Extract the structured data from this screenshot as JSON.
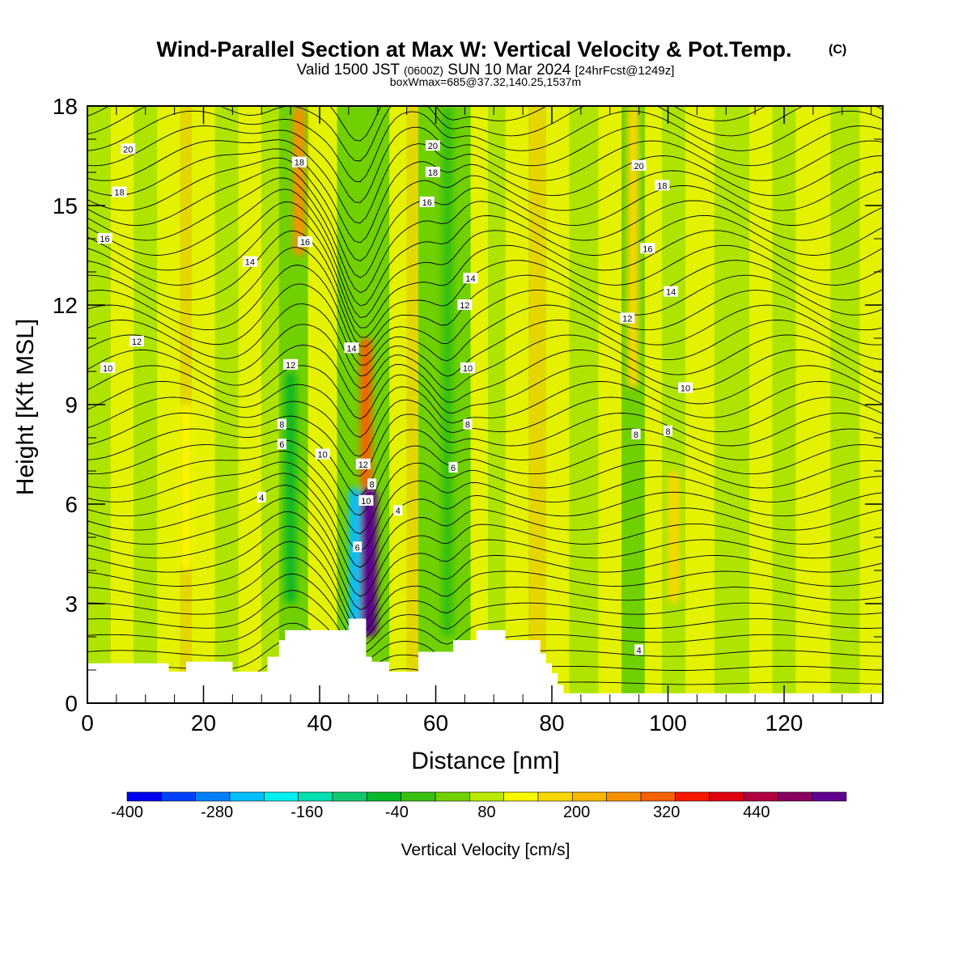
{
  "title": "Wind-Parallel Section at Max W: Vertical Velocity & Pot.Temp.",
  "title_mark": "(C)",
  "subtitle_main": "Valid 1500 JST",
  "subtitle_z": "(0600Z)",
  "subtitle_date": "SUN 10 Mar 2024",
  "subtitle_fcst": "[24hrFcst@1249z]",
  "box_info": "boxWmax=685@37.32,140.25,1537m",
  "chart_data": {
    "type": "heatmap",
    "xlabel": "Distance [nm]",
    "ylabel": "Height [Kft MSL]",
    "xlim": [
      0,
      137
    ],
    "ylim": [
      0,
      18
    ],
    "x_ticks": [
      "0",
      "20",
      "40",
      "60",
      "80",
      "100",
      "120"
    ],
    "y_ticks": [
      "0",
      "3",
      "6",
      "9",
      "12",
      "15",
      "18"
    ],
    "colorbar": {
      "label": "Vertical Velocity [cm/s]",
      "range": [
        -400,
        520
      ],
      "step": 40,
      "tick_labels": [
        "-400",
        "-280",
        "-160",
        "-40",
        "80",
        "200",
        "320",
        "440"
      ],
      "colors": [
        "#0000f0",
        "#0040ff",
        "#0080ff",
        "#00c0ff",
        "#00f0f0",
        "#00e0b0",
        "#10c870",
        "#08b828",
        "#38c010",
        "#70d000",
        "#b8e800",
        "#f8f800",
        "#f8d800",
        "#f8b800",
        "#f89000",
        "#f86000",
        "#f81800",
        "#e00010",
        "#b00040",
        "#880060",
        "#600090"
      ]
    },
    "terrain": [
      [
        0,
        1.2
      ],
      [
        14,
        1.2
      ],
      [
        14,
        0.95
      ],
      [
        17,
        0.95
      ],
      [
        17,
        1.25
      ],
      [
        25,
        1.25
      ],
      [
        25,
        0.95
      ],
      [
        31,
        0.95
      ],
      [
        31,
        1.4
      ],
      [
        33,
        1.4
      ],
      [
        33,
        1.9
      ],
      [
        34,
        1.9
      ],
      [
        34,
        2.2
      ],
      [
        45,
        2.2
      ],
      [
        45,
        2.55
      ],
      [
        48,
        2.55
      ],
      [
        48,
        1.4
      ],
      [
        49,
        1.4
      ],
      [
        49,
        1.25
      ],
      [
        52,
        1.25
      ],
      [
        52,
        0.95
      ],
      [
        57,
        0.95
      ],
      [
        57,
        1.55
      ],
      [
        63,
        1.55
      ],
      [
        63,
        1.9
      ],
      [
        67,
        1.9
      ],
      [
        67,
        2.2
      ],
      [
        72,
        2.2
      ],
      [
        72,
        1.9
      ],
      [
        78,
        1.9
      ],
      [
        78,
        1.5
      ],
      [
        79,
        1.5
      ],
      [
        79,
        1.2
      ],
      [
        80,
        1.2
      ],
      [
        80,
        0.9
      ],
      [
        81,
        0.9
      ],
      [
        81,
        0.55
      ],
      [
        82,
        0.55
      ],
      [
        82,
        0.3
      ],
      [
        137,
        0.3
      ]
    ],
    "velocity_features": [
      {
        "x": 48.5,
        "y0": 2.0,
        "y1": 6.5,
        "w": 440
      },
      {
        "x": 48.0,
        "y0": 6.5,
        "y1": 11.0,
        "w": 220
      },
      {
        "x": 46.0,
        "y0": 2.0,
        "y1": 6.5,
        "w": -260
      },
      {
        "x": 35.0,
        "y0": 3.0,
        "y1": 10.0,
        "w": -100
      },
      {
        "x": 36.5,
        "y0": 13.5,
        "y1": 18.0,
        "w": 160
      },
      {
        "x": 62.0,
        "y0": 2.0,
        "y1": 18.0,
        "w": -80
      },
      {
        "x": 94.0,
        "y0": 9.5,
        "y1": 18.0,
        "w": 100
      },
      {
        "x": 101.0,
        "y0": 3.0,
        "y1": 7.0,
        "w": 80
      },
      {
        "x": 17.0,
        "y0": 4.0,
        "y1": 9.0,
        "w": 60
      }
    ],
    "contour_labels": [
      {
        "text": "20",
        "x": 7,
        "y": 16.7
      },
      {
        "text": "18",
        "x": 5.5,
        "y": 15.4
      },
      {
        "text": "16",
        "x": 3,
        "y": 14.0
      },
      {
        "text": "12",
        "x": 8.5,
        "y": 10.9
      },
      {
        "text": "10",
        "x": 3.5,
        "y": 10.1
      },
      {
        "text": "14",
        "x": 28,
        "y": 13.3
      },
      {
        "text": "18",
        "x": 36.5,
        "y": 16.3
      },
      {
        "text": "16",
        "x": 37.5,
        "y": 13.9
      },
      {
        "text": "12",
        "x": 35,
        "y": 10.2
      },
      {
        "text": "8",
        "x": 33.5,
        "y": 8.4
      },
      {
        "text": "6",
        "x": 33.5,
        "y": 7.8
      },
      {
        "text": "10",
        "x": 40.5,
        "y": 7.5
      },
      {
        "text": "4",
        "x": 30,
        "y": 6.2
      },
      {
        "text": "14",
        "x": 45.5,
        "y": 10.7
      },
      {
        "text": "12",
        "x": 47.5,
        "y": 7.2
      },
      {
        "text": "8",
        "x": 49,
        "y": 6.6
      },
      {
        "text": "10",
        "x": 48,
        "y": 6.1
      },
      {
        "text": "6",
        "x": 46.5,
        "y": 4.7
      },
      {
        "text": "4",
        "x": 53.5,
        "y": 5.8
      },
      {
        "text": "20",
        "x": 59.5,
        "y": 16.8
      },
      {
        "text": "18",
        "x": 59.5,
        "y": 16.0
      },
      {
        "text": "16",
        "x": 58.5,
        "y": 15.1
      },
      {
        "text": "14",
        "x": 66,
        "y": 12.8
      },
      {
        "text": "12",
        "x": 65,
        "y": 12.0
      },
      {
        "text": "10",
        "x": 65.5,
        "y": 10.1
      },
      {
        "text": "8",
        "x": 65.5,
        "y": 8.4
      },
      {
        "text": "6",
        "x": 63,
        "y": 7.1
      },
      {
        "text": "20",
        "x": 95,
        "y": 16.2
      },
      {
        "text": "18",
        "x": 99,
        "y": 15.6
      },
      {
        "text": "16",
        "x": 96.5,
        "y": 13.7
      },
      {
        "text": "14",
        "x": 100.5,
        "y": 12.4
      },
      {
        "text": "12",
        "x": 93,
        "y": 11.6
      },
      {
        "text": "10",
        "x": 103,
        "y": 9.5
      },
      {
        "text": "8",
        "x": 94.5,
        "y": 8.1
      },
      {
        "text": "8",
        "x": 100,
        "y": 8.2
      },
      {
        "text": "4",
        "x": 95,
        "y": 1.6
      }
    ]
  }
}
